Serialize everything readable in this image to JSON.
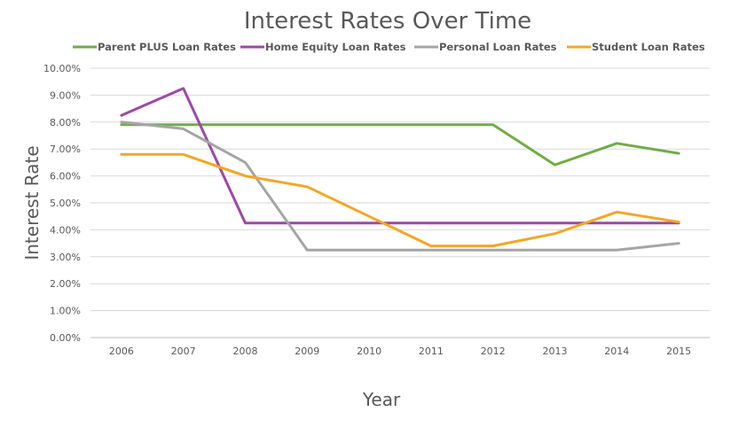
{
  "chart_data": {
    "type": "line",
    "title": "Interest Rates Over Time",
    "xlabel": "Year",
    "ylabel": "Interest Rate",
    "categories": [
      "2006",
      "2007",
      "2008",
      "2009",
      "2010",
      "2011",
      "2012",
      "2013",
      "2014",
      "2015"
    ],
    "ylim": [
      0,
      10
    ],
    "yticks": [
      "0.00%",
      "1.00%",
      "2.00%",
      "3.00%",
      "4.00%",
      "5.00%",
      "6.00%",
      "7.00%",
      "8.00%",
      "9.00%",
      "10.00%"
    ],
    "grid": true,
    "legend_position": "top",
    "series": [
      {
        "name": "Parent PLUS Loan Rates",
        "color": "#70ad47",
        "values": [
          7.9,
          7.9,
          7.9,
          7.9,
          7.9,
          7.9,
          7.9,
          6.41,
          7.21,
          6.84
        ]
      },
      {
        "name": "Home Equity Loan Rates",
        "color": "#9e48a8",
        "values": [
          8.25,
          9.25,
          4.25,
          4.25,
          4.25,
          4.25,
          4.25,
          4.25,
          4.25,
          4.25
        ]
      },
      {
        "name": "Personal Loan Rates",
        "color": "#a5a5a5",
        "values": [
          8.0,
          7.75,
          6.5,
          3.25,
          3.25,
          3.25,
          3.25,
          3.25,
          3.25,
          3.5
        ]
      },
      {
        "name": "Student Loan Rates",
        "color": "#f5a623",
        "values": [
          6.8,
          6.8,
          6.0,
          5.6,
          4.5,
          3.4,
          3.4,
          3.86,
          4.66,
          4.29
        ]
      }
    ]
  }
}
